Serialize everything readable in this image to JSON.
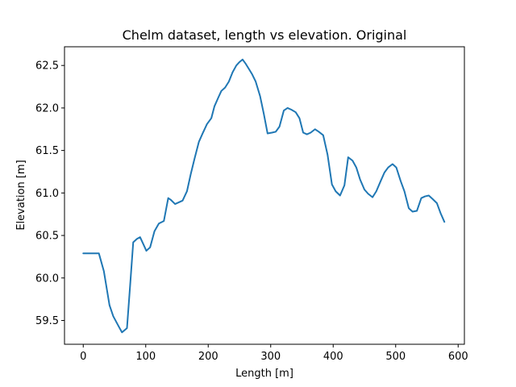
{
  "chart_data": {
    "type": "line",
    "title": "Chelm dataset, length vs elevation. Original",
    "xlabel": "Length [m]",
    "ylabel": "Elevation [m]",
    "xlim": [
      -30,
      610
    ],
    "ylim": [
      59.22,
      62.72
    ],
    "xticks": [
      0,
      100,
      200,
      300,
      400,
      500,
      600
    ],
    "yticks": [
      59.5,
      60.0,
      60.5,
      61.0,
      61.5,
      62.0,
      62.5
    ],
    "grid": false,
    "series": [
      {
        "color": "#1f77b4",
        "x": [
          0,
          5,
          10,
          20,
          25,
          33,
          42,
          48,
          56,
          62,
          70,
          75,
          80,
          86,
          91,
          96,
          101,
          107,
          114,
          121,
          129,
          136,
          140,
          147,
          153,
          159,
          166,
          172,
          178,
          185,
          191,
          198,
          205,
          210,
          216,
          221,
          227,
          233,
          239,
          245,
          250,
          255,
          260,
          265,
          270,
          276,
          283,
          289,
          295,
          302,
          308,
          314,
          321,
          327,
          333,
          340,
          346,
          352,
          358,
          364,
          371,
          377,
          384,
          391,
          398,
          404,
          411,
          418,
          424,
          431,
          437,
          443,
          450,
          456,
          463,
          469,
          476,
          482,
          488,
          495,
          501,
          508,
          514,
          521,
          527,
          534,
          541,
          547,
          553,
          559,
          566,
          572,
          578
        ],
        "y": [
          60.29,
          60.29,
          60.29,
          60.29,
          60.29,
          60.08,
          59.68,
          59.55,
          59.44,
          59.36,
          59.41,
          59.91,
          60.42,
          60.46,
          60.48,
          60.4,
          60.32,
          60.36,
          60.55,
          60.64,
          60.67,
          60.94,
          60.92,
          60.87,
          60.89,
          60.91,
          61.02,
          61.22,
          61.4,
          61.6,
          61.7,
          61.81,
          61.88,
          62.02,
          62.12,
          62.2,
          62.24,
          62.31,
          62.42,
          62.5,
          62.54,
          62.57,
          62.52,
          62.46,
          62.4,
          62.31,
          62.14,
          61.93,
          61.7,
          61.71,
          61.72,
          61.78,
          61.97,
          62.0,
          61.98,
          61.95,
          61.88,
          61.71,
          61.69,
          61.71,
          61.75,
          61.72,
          61.68,
          61.45,
          61.1,
          61.02,
          60.97,
          61.09,
          61.42,
          61.38,
          61.3,
          61.16,
          61.04,
          60.99,
          60.95,
          61.02,
          61.14,
          61.24,
          61.3,
          61.34,
          61.3,
          61.14,
          61.02,
          60.82,
          60.78,
          60.79,
          60.94,
          60.96,
          60.97,
          60.93,
          60.88,
          60.76,
          60.66
        ]
      }
    ]
  }
}
